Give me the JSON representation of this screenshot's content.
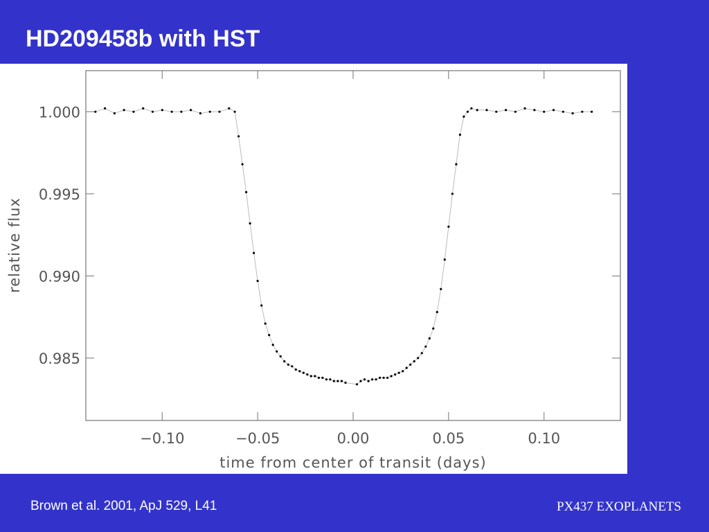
{
  "slide": {
    "title": "HD209458b with HST",
    "citation": "Brown et al. 2001, ApJ 529, L41",
    "course": "PX437 EXOPLANETS",
    "background_color": "#3333cc",
    "text_color": "#ffffff"
  },
  "chart_data": {
    "type": "scatter",
    "title": "",
    "xlabel": "time from center of transit (days)",
    "ylabel": "relative flux",
    "xlim": [
      -0.14,
      0.14
    ],
    "ylim": [
      0.9812,
      1.0025
    ],
    "x_ticks": [
      -0.1,
      -0.05,
      0.0,
      0.05,
      0.1
    ],
    "x_tick_labels": [
      "−0.10",
      "−0.05",
      "0.00",
      "0.05",
      "0.10"
    ],
    "y_ticks": [
      0.985,
      0.99,
      0.995,
      1.0
    ],
    "y_tick_labels": [
      "0.985",
      "0.990",
      "0.995",
      "1.000"
    ],
    "grid": false,
    "point_color": "#000000",
    "model_color": "#bbbbbb",
    "series": [
      {
        "x": [
          -0.135,
          -0.13,
          -0.125,
          -0.12,
          -0.115,
          -0.11,
          -0.105,
          -0.1,
          -0.095,
          -0.09,
          -0.085,
          -0.08,
          -0.075,
          -0.07,
          -0.065,
          -0.062,
          -0.06,
          -0.058,
          -0.056,
          -0.054,
          -0.052,
          -0.05,
          -0.048,
          -0.046,
          -0.044,
          -0.042,
          -0.04,
          -0.038,
          -0.036,
          -0.034,
          -0.032,
          -0.03,
          -0.028,
          -0.026,
          -0.024,
          -0.022,
          -0.02,
          -0.018,
          -0.016,
          -0.014,
          -0.012,
          -0.01,
          -0.008,
          -0.006,
          -0.004,
          0.002,
          0.004,
          0.006,
          0.008,
          0.01,
          0.012,
          0.014,
          0.016,
          0.018,
          0.02,
          0.022,
          0.024,
          0.026,
          0.028,
          0.03,
          0.032,
          0.034,
          0.036,
          0.038,
          0.04,
          0.042,
          0.044,
          0.046,
          0.048,
          0.05,
          0.052,
          0.054,
          0.056,
          0.058,
          0.06,
          0.062,
          0.065,
          0.07,
          0.075,
          0.08,
          0.085,
          0.09,
          0.095,
          0.1,
          0.105,
          0.11,
          0.115,
          0.12,
          0.125
        ],
        "y": [
          1.0,
          1.0002,
          0.9999,
          1.0001,
          1.0,
          1.0002,
          1.0,
          1.0001,
          1.0,
          1.0,
          1.0001,
          0.9999,
          1.0,
          1.0,
          1.0002,
          1.0,
          0.9985,
          0.9968,
          0.9951,
          0.9932,
          0.9914,
          0.9897,
          0.9882,
          0.9871,
          0.9864,
          0.9858,
          0.9854,
          0.9851,
          0.9848,
          0.9846,
          0.9845,
          0.9843,
          0.9842,
          0.9841,
          0.984,
          0.9839,
          0.9839,
          0.9838,
          0.9838,
          0.9837,
          0.9837,
          0.9836,
          0.9836,
          0.9836,
          0.9835,
          0.9834,
          0.9836,
          0.9837,
          0.9836,
          0.9837,
          0.9837,
          0.9838,
          0.9838,
          0.9838,
          0.9839,
          0.984,
          0.9841,
          0.9842,
          0.9844,
          0.9846,
          0.9848,
          0.985,
          0.9853,
          0.9857,
          0.9862,
          0.9868,
          0.9878,
          0.9892,
          0.991,
          0.993,
          0.995,
          0.9968,
          0.9986,
          0.9997,
          1.0,
          1.0002,
          1.0001,
          1.0001,
          1.0,
          1.0001,
          1.0,
          1.0002,
          1.0001,
          1.0,
          1.0001,
          1.0,
          0.9999,
          1.0,
          1.0
        ]
      }
    ]
  }
}
